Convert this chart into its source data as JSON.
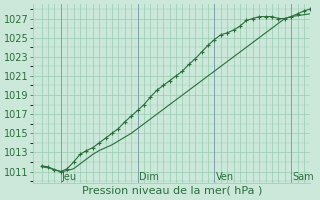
{
  "bg_color": "#cce8da",
  "grid_color": "#99ccb3",
  "line_color": "#2a6e3a",
  "xlabel": "Pression niveau de la mer( hPa )",
  "xlabel_fontsize": 8,
  "tick_label_fontsize": 7,
  "yticks": [
    1011,
    1013,
    1015,
    1017,
    1019,
    1021,
    1023,
    1025,
    1027
  ],
  "ylim": [
    1009.8,
    1028.5
  ],
  "xlim": [
    -8,
    252
  ],
  "day_labels": [
    "Jeu",
    "Dim",
    "Ven",
    "Sam"
  ],
  "day_positions": [
    18,
    90,
    162,
    234
  ],
  "vline_positions": [
    18,
    90,
    162,
    234
  ],
  "total_hours": 252,
  "series1_x": [
    0,
    6,
    12,
    18,
    24,
    30,
    36,
    42,
    48,
    54,
    60,
    66,
    72,
    78,
    84,
    90,
    96,
    102,
    108,
    114,
    120,
    126,
    132,
    138,
    144,
    150,
    156,
    162,
    168,
    174,
    180,
    186,
    192,
    198,
    204,
    210,
    216,
    222,
    228,
    234,
    240,
    246,
    252
  ],
  "series1_y": [
    1011.5,
    1011.4,
    1011.2,
    1011.0,
    1011.1,
    1011.3,
    1011.8,
    1012.3,
    1012.8,
    1013.2,
    1013.5,
    1013.8,
    1014.2,
    1014.6,
    1015.0,
    1015.5,
    1016.0,
    1016.5,
    1017.0,
    1017.5,
    1018.0,
    1018.5,
    1019.0,
    1019.5,
    1020.0,
    1020.5,
    1021.0,
    1021.5,
    1022.0,
    1022.5,
    1023.0,
    1023.5,
    1024.0,
    1024.5,
    1025.0,
    1025.5,
    1026.0,
    1026.5,
    1027.0,
    1027.2,
    1027.3,
    1027.4,
    1027.5
  ],
  "series2_x": [
    0,
    6,
    12,
    18,
    24,
    30,
    36,
    42,
    48,
    54,
    60,
    66,
    72,
    78,
    84,
    90,
    96,
    102,
    108,
    114,
    120,
    126,
    132,
    138,
    144,
    150,
    156,
    162,
    168,
    174,
    180,
    186,
    192,
    198,
    204,
    210,
    216,
    222,
    228,
    234,
    240,
    246,
    252
  ],
  "series2_y": [
    1011.6,
    1011.5,
    1011.2,
    1011.0,
    1011.3,
    1012.0,
    1012.8,
    1013.2,
    1013.5,
    1014.0,
    1014.5,
    1015.0,
    1015.5,
    1016.2,
    1016.8,
    1017.4,
    1018.0,
    1018.8,
    1019.5,
    1020.0,
    1020.5,
    1021.0,
    1021.5,
    1022.2,
    1022.8,
    1023.5,
    1024.2,
    1024.8,
    1025.3,
    1025.5,
    1025.8,
    1026.2,
    1026.8,
    1027.0,
    1027.2,
    1027.2,
    1027.2,
    1027.0,
    1027.0,
    1027.2,
    1027.5,
    1027.8,
    1028.0
  ]
}
